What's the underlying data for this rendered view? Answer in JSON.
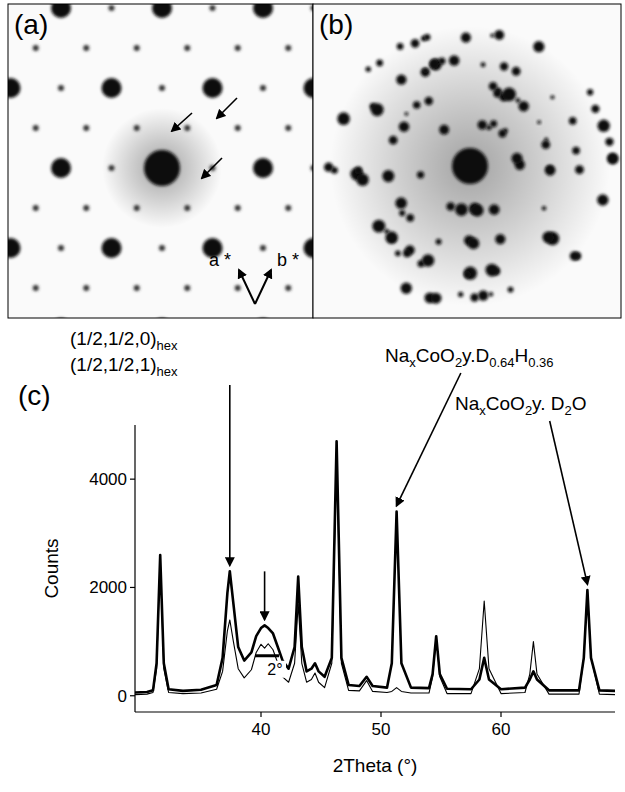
{
  "figure": {
    "panels": [
      {
        "label": "(a)",
        "annotations": [
          "a *",
          "b *"
        ]
      },
      {
        "label": "(b)"
      },
      {
        "label": "(c)"
      }
    ]
  },
  "chart_data": {
    "type": "line",
    "x_label": "2Theta (°)",
    "y_label": "Counts",
    "x": [
      29.5,
      30.5,
      31.0,
      31.3,
      31.6,
      31.9,
      32.3,
      33.5,
      35.0,
      36.3,
      36.8,
      37.2,
      37.4,
      37.7,
      38.1,
      38.6,
      39.2,
      39.6,
      40.0,
      40.3,
      40.6,
      41.0,
      41.4,
      41.8,
      42.3,
      42.8,
      43.1,
      43.4,
      43.8,
      44.2,
      44.5,
      44.8,
      45.3,
      45.9,
      46.3,
      46.7,
      47.3,
      48.2,
      48.8,
      49.3,
      50.5,
      50.9,
      51.3,
      51.7,
      52.5,
      54.0,
      54.3,
      54.6,
      54.9,
      55.5,
      57.5,
      58.2,
      58.6,
      59.0,
      60.0,
      62.0,
      62.4,
      62.7,
      63.0,
      64.0,
      66.5,
      66.9,
      67.2,
      67.5,
      68.2,
      69.5
    ],
    "series": [
      {
        "color": "#000000",
        "line_style": "thick",
        "values": [
          60,
          70,
          100,
          600,
          2600,
          600,
          120,
          90,
          110,
          200,
          700,
          1900,
          2300,
          1700,
          900,
          650,
          800,
          1100,
          1250,
          1300,
          1250,
          1150,
          900,
          650,
          500,
          900,
          2200,
          900,
          450,
          500,
          600,
          450,
          350,
          700,
          4700,
          700,
          200,
          180,
          350,
          180,
          150,
          600,
          3400,
          600,
          150,
          140,
          400,
          1100,
          400,
          130,
          120,
          300,
          700,
          300,
          120,
          150,
          300,
          450,
          300,
          100,
          100,
          700,
          1950,
          700,
          100,
          90
        ]
      },
      {
        "color": "#000000",
        "line_style": "thin",
        "values": [
          20,
          30,
          60,
          500,
          2550,
          500,
          60,
          40,
          50,
          120,
          450,
          1200,
          1400,
          1000,
          500,
          330,
          480,
          800,
          950,
          880,
          960,
          850,
          600,
          350,
          250,
          600,
          1700,
          600,
          250,
          300,
          420,
          250,
          150,
          600,
          4500,
          600,
          100,
          90,
          280,
          80,
          60,
          80,
          150,
          80,
          50,
          50,
          350,
          1100,
          350,
          40,
          40,
          500,
          1750,
          500,
          40,
          60,
          400,
          1000,
          400,
          30,
          30,
          700,
          1950,
          700,
          30,
          20
        ]
      }
    ],
    "xlim": [
      29.5,
      69.5
    ],
    "xticks": [
      40,
      50,
      60
    ],
    "ylim": [
      -300,
      5000
    ],
    "yticks": [
      0,
      2000,
      4000
    ],
    "annotations": [
      {
        "x": 37.4,
        "y": 2300,
        "lines": [
          [
            {
              "text": "(1/2,1/2,0)"
            },
            {
              "text": "hex",
              "sub": true
            }
          ],
          [
            {
              "text": "(1/2,1/2,1)"
            },
            {
              "text": "hex",
              "sub": true
            }
          ]
        ]
      },
      {
        "x": 40.3,
        "y": 1300
      },
      {
        "x": 51.3,
        "y": 3400,
        "lines": [
          [
            {
              "text": "Na"
            },
            {
              "text": "x",
              "sub": true
            },
            {
              "text": "CoO"
            },
            {
              "text": "2",
              "sub": true
            },
            {
              "text": "y.D"
            },
            {
              "text": "0.64",
              "sub": true
            },
            {
              "text": "H"
            },
            {
              "text": "0.36",
              "sub": true
            }
          ]
        ]
      },
      {
        "x": 67.2,
        "y": 1950,
        "lines": [
          [
            {
              "text": "Na"
            },
            {
              "text": "x",
              "sub": true
            },
            {
              "text": "CoO"
            },
            {
              "text": "2",
              "sub": true
            },
            {
              "text": "y. D"
            },
            {
              "text": "2",
              "sub": true
            },
            {
              "text": "O"
            }
          ]
        ]
      }
    ],
    "scale_bar": {
      "label": "2°",
      "from": 39.5,
      "to": 41.5
    }
  }
}
